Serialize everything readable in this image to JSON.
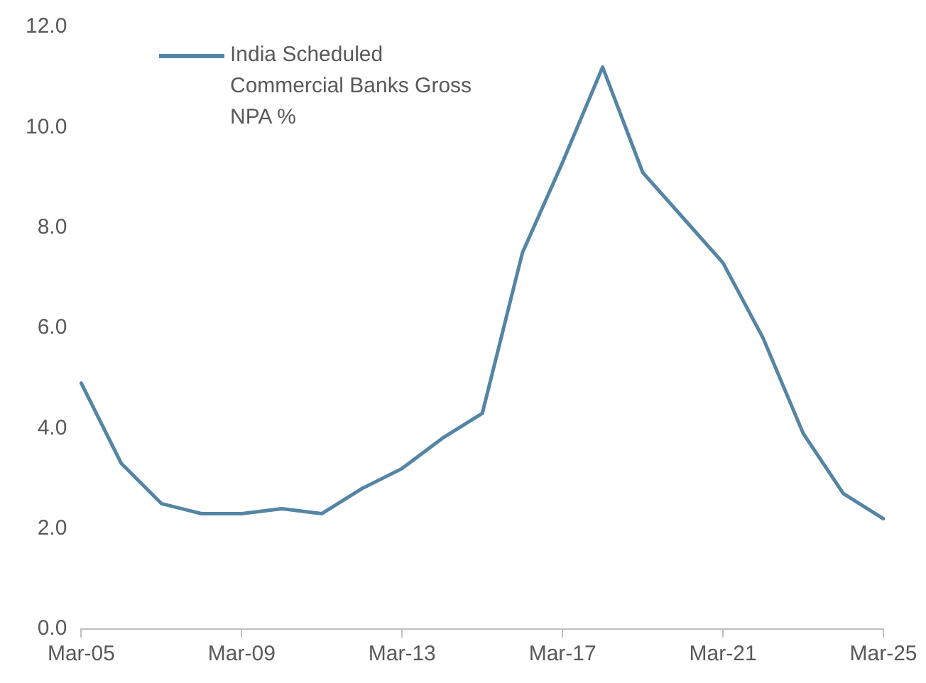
{
  "chart_data": {
    "type": "line",
    "categories": [
      "Mar-05",
      null,
      null,
      null,
      "Mar-09",
      null,
      null,
      null,
      "Mar-13",
      null,
      null,
      null,
      "Mar-17",
      null,
      null,
      null,
      "Mar-21",
      null,
      null,
      null,
      "Mar-25"
    ],
    "series": [
      {
        "name": "India Scheduled Commercial Banks Gross NPA %",
        "color": "#5585a5",
        "values": [
          4.9,
          3.3,
          2.5,
          2.3,
          2.3,
          2.4,
          2.3,
          2.8,
          3.2,
          3.8,
          4.3,
          7.5,
          9.3,
          11.2,
          9.1,
          8.2,
          7.3,
          5.8,
          3.9,
          2.7,
          2.2
        ]
      }
    ],
    "ylim": [
      0,
      12
    ],
    "yticks": [
      {
        "value": 0,
        "label": "0.0"
      },
      {
        "value": 2,
        "label": "2.0"
      },
      {
        "value": 4,
        "label": "4.0"
      },
      {
        "value": 6,
        "label": "6.0"
      },
      {
        "value": 8,
        "label": "8.0"
      },
      {
        "value": 10,
        "label": "10.0"
      },
      {
        "value": 12,
        "label": "12.0"
      }
    ],
    "grid": false,
    "legend": "top left",
    "marker": "none",
    "line_style": "solid"
  }
}
